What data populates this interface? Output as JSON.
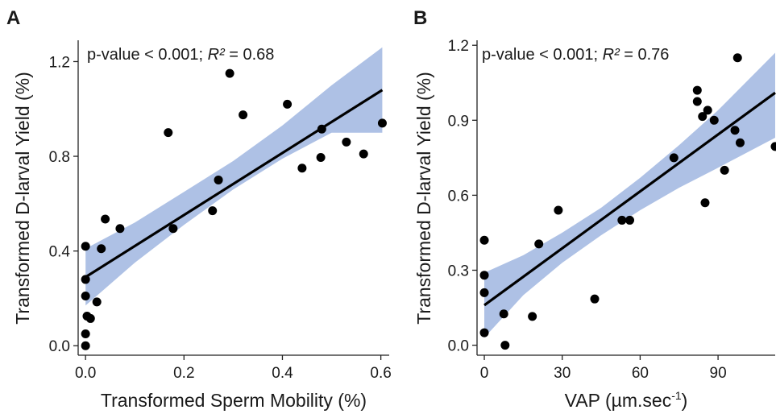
{
  "chart_data": [
    {
      "panel_label": "A",
      "type": "scatter",
      "annotation": {
        "prefix": "p-value < 0.001; ",
        "r2_symbol": "R²",
        "r2_value": " = 0.68"
      },
      "ylabel": "Transformed D-larval Yield (%)",
      "xlabel": "Transformed Sperm Mobility (%)",
      "xlim": [
        -0.015,
        0.617
      ],
      "ylim": [
        -0.04,
        1.29
      ],
      "xticks": [
        "0.0",
        "0.2",
        "0.4",
        "0.6"
      ],
      "yticks": [
        "0.0",
        "0.4",
        "0.8",
        "1.2"
      ],
      "grid": false,
      "points": [
        {
          "x": 0.0,
          "y": 0.42
        },
        {
          "x": 0.0,
          "y": 0.28
        },
        {
          "x": 0.0,
          "y": 0.21
        },
        {
          "x": 0.0,
          "y": 0.05
        },
        {
          "x": 0.0,
          "y": 0.0
        },
        {
          "x": 0.003,
          "y": 0.125
        },
        {
          "x": 0.01,
          "y": 0.115
        },
        {
          "x": 0.023,
          "y": 0.185
        },
        {
          "x": 0.032,
          "y": 0.41
        },
        {
          "x": 0.04,
          "y": 0.535
        },
        {
          "x": 0.07,
          "y": 0.495
        },
        {
          "x": 0.168,
          "y": 0.9
        },
        {
          "x": 0.178,
          "y": 0.495
        },
        {
          "x": 0.258,
          "y": 0.57
        },
        {
          "x": 0.27,
          "y": 0.7
        },
        {
          "x": 0.293,
          "y": 1.15
        },
        {
          "x": 0.32,
          "y": 0.975
        },
        {
          "x": 0.41,
          "y": 1.02
        },
        {
          "x": 0.44,
          "y": 0.75
        },
        {
          "x": 0.478,
          "y": 0.795
        },
        {
          "x": 0.48,
          "y": 0.915
        },
        {
          "x": 0.53,
          "y": 0.86
        },
        {
          "x": 0.565,
          "y": 0.81
        },
        {
          "x": 0.603,
          "y": 0.94
        }
      ],
      "fit": {
        "x0": 0.0,
        "y0": 0.29,
        "x1": 0.603,
        "y1": 1.08
      },
      "ci_band": {
        "x": [
          0.0,
          0.1,
          0.2,
          0.3,
          0.4,
          0.5,
          0.603
        ],
        "lower": [
          0.17,
          0.35,
          0.51,
          0.66,
          0.79,
          0.9,
          0.9
        ],
        "upper": [
          0.41,
          0.52,
          0.65,
          0.78,
          0.93,
          1.1,
          1.26
        ]
      },
      "colors": {
        "points": "#000000",
        "fit": "#000000",
        "band": "#aec1e5"
      }
    },
    {
      "panel_label": "B",
      "type": "scatter",
      "annotation": {
        "prefix": "p-value < 0.001; ",
        "r2_symbol": "R²",
        "r2_value": " = 0.76"
      },
      "ylabel": "Transformed D-larval Yield (%)",
      "xlabel_main": "VAP (µm.sec",
      "xlabel_sup": "-1",
      "xlabel_end": ")",
      "xlim": [
        -2.8,
        112
      ],
      "ylim": [
        -0.04,
        1.22
      ],
      "xticks": [
        "0",
        "30",
        "60",
        "90"
      ],
      "yticks": [
        "0.0",
        "0.3",
        "0.6",
        "0.9",
        "1.2"
      ],
      "grid": false,
      "points": [
        {
          "x": 0,
          "y": 0.42
        },
        {
          "x": 0,
          "y": 0.28
        },
        {
          "x": 0,
          "y": 0.21
        },
        {
          "x": 0,
          "y": 0.05
        },
        {
          "x": 7.5,
          "y": 0.125
        },
        {
          "x": 8,
          "y": 0.0
        },
        {
          "x": 18.5,
          "y": 0.115
        },
        {
          "x": 21,
          "y": 0.405
        },
        {
          "x": 28.5,
          "y": 0.54
        },
        {
          "x": 42.5,
          "y": 0.185
        },
        {
          "x": 53,
          "y": 0.5
        },
        {
          "x": 56,
          "y": 0.5
        },
        {
          "x": 73,
          "y": 0.75
        },
        {
          "x": 82,
          "y": 1.02
        },
        {
          "x": 82,
          "y": 0.975
        },
        {
          "x": 84,
          "y": 0.915
        },
        {
          "x": 85,
          "y": 0.57
        },
        {
          "x": 86,
          "y": 0.94
        },
        {
          "x": 88.5,
          "y": 0.9
        },
        {
          "x": 92.5,
          "y": 0.7
        },
        {
          "x": 96.5,
          "y": 0.86
        },
        {
          "x": 97.5,
          "y": 1.15
        },
        {
          "x": 98.5,
          "y": 0.81
        },
        {
          "x": 112,
          "y": 0.795
        }
      ],
      "fit": {
        "x0": 0,
        "y0": 0.16,
        "x1": 112,
        "y1": 1.01
      },
      "ci_band": {
        "x": [
          0,
          15,
          30,
          45,
          60,
          75,
          90,
          112
        ],
        "lower": [
          0.03,
          0.2,
          0.33,
          0.44,
          0.54,
          0.63,
          0.71,
          0.83
        ],
        "upper": [
          0.29,
          0.36,
          0.45,
          0.55,
          0.67,
          0.8,
          0.94,
          1.17
        ]
      },
      "colors": {
        "points": "#000000",
        "fit": "#000000",
        "band": "#aec1e5"
      }
    }
  ]
}
